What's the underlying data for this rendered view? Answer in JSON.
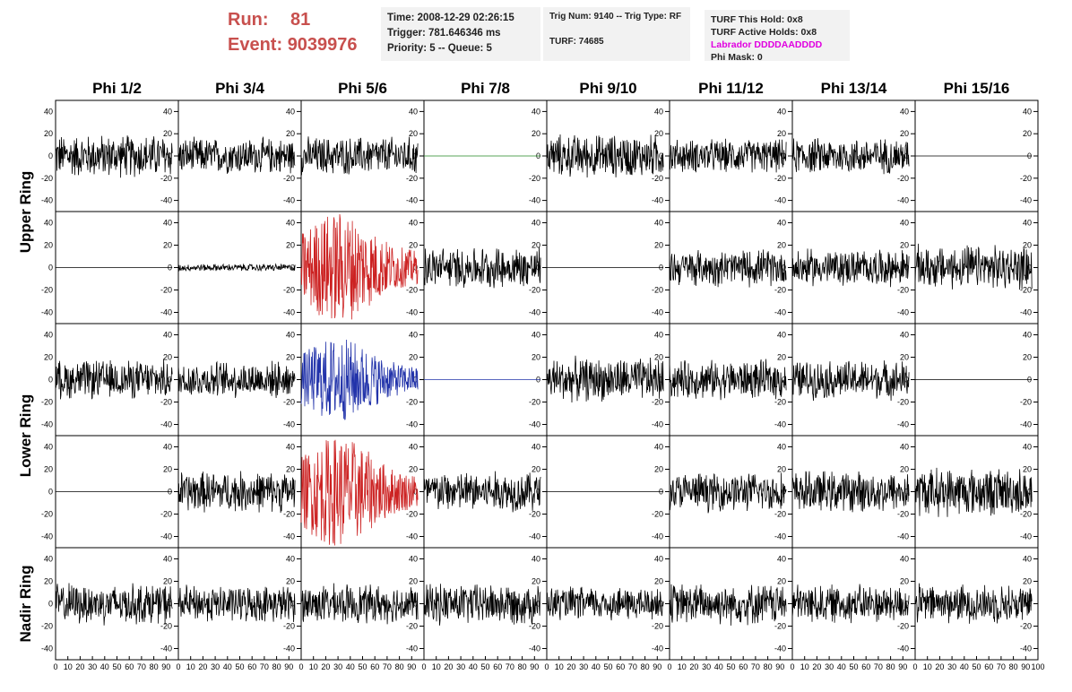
{
  "header": {
    "run_label": "Run:",
    "run_value": "81",
    "event_label": "Event:",
    "event_value": "9039976",
    "time_line": "Time: 2008-12-29 02:26:15",
    "trigger_line": "Trigger: 781.646346 ms",
    "priority_line": "Priority: 5 -- Queue: 5",
    "trig_line": "Trig Num: 9140 -- Trig Type: RF",
    "turf_line": "TURF: 74685",
    "turf_hold_line": "TURF This Hold: 0x8",
    "turf_active_line": "TURF Active Holds: 0x8",
    "labrador_line": "Labrador DDDDAADDDD",
    "phi_mask_line": "Phi Mask: 0"
  },
  "colors": {
    "run_text": "#c8504e",
    "labrador_text": "#e000e0",
    "trace_default": "#000000",
    "trace_red": "#cc2222",
    "trace_blue": "#2233aa",
    "trace_green": "#228822",
    "info_bg": "#f2f2f2"
  },
  "chart_data": {
    "type": "line",
    "columns": [
      "Phi 1/2",
      "Phi 3/4",
      "Phi 5/6",
      "Phi 7/8",
      "Phi 9/10",
      "Phi 11/12",
      "Phi 13/14",
      "Phi 15/16"
    ],
    "ring_labels": [
      "Upper Ring",
      "Lower Ring",
      "Nadir Ring"
    ],
    "rows_per_ring": [
      2,
      2,
      1
    ],
    "xlim": [
      0,
      100
    ],
    "ylim": [
      -50,
      50
    ],
    "x_tick_values": [
      0,
      10,
      20,
      30,
      40,
      50,
      60,
      70,
      80,
      90
    ],
    "y_tick_values": [
      -40,
      -20,
      0,
      20,
      40
    ],
    "grid": false,
    "panels": [
      [
        {
          "mode": "noise",
          "amp": 18,
          "color": "trace_default"
        },
        {
          "mode": "noise",
          "amp": 15,
          "color": "trace_default"
        },
        {
          "mode": "noise",
          "amp": 16,
          "color": "trace_default"
        },
        {
          "mode": "flat",
          "amp": 0,
          "color": "trace_green"
        },
        {
          "mode": "noise",
          "amp": 18,
          "color": "trace_default"
        },
        {
          "mode": "noise",
          "amp": 14,
          "color": "trace_default"
        },
        {
          "mode": "noise",
          "amp": 15,
          "color": "trace_default"
        },
        {
          "mode": "flat",
          "amp": 0,
          "color": "trace_default"
        }
      ],
      [
        {
          "mode": "flat",
          "amp": 0,
          "color": "trace_default"
        },
        {
          "mode": "noise",
          "amp": 3,
          "color": "trace_default"
        },
        {
          "mode": "pulse",
          "amp": 40,
          "color": "trace_red"
        },
        {
          "mode": "noise",
          "amp": 17,
          "color": "trace_default"
        },
        {
          "mode": "flat",
          "amp": 0,
          "color": "trace_default"
        },
        {
          "mode": "noise",
          "amp": 15,
          "color": "trace_default"
        },
        {
          "mode": "noise",
          "amp": 15,
          "color": "trace_default"
        },
        {
          "mode": "noise",
          "amp": 18,
          "color": "trace_default"
        }
      ],
      [
        {
          "mode": "noise",
          "amp": 16,
          "color": "trace_default"
        },
        {
          "mode": "noise",
          "amp": 15,
          "color": "trace_default"
        },
        {
          "mode": "pulse",
          "amp": 30,
          "color": "trace_blue"
        },
        {
          "mode": "flat",
          "amp": 0,
          "color": "trace_blue"
        },
        {
          "mode": "noise",
          "amp": 18,
          "color": "trace_default"
        },
        {
          "mode": "noise",
          "amp": 16,
          "color": "trace_default"
        },
        {
          "mode": "noise",
          "amp": 16,
          "color": "trace_default"
        },
        {
          "mode": "flat",
          "amp": 0,
          "color": "trace_default"
        }
      ],
      [
        {
          "mode": "flat",
          "amp": 0,
          "color": "trace_default"
        },
        {
          "mode": "noise",
          "amp": 17,
          "color": "trace_default"
        },
        {
          "mode": "pulse",
          "amp": 40,
          "color": "trace_red"
        },
        {
          "mode": "noise",
          "amp": 17,
          "color": "trace_default"
        },
        {
          "mode": "flat",
          "amp": 0,
          "color": "trace_default"
        },
        {
          "mode": "noise",
          "amp": 16,
          "color": "trace_default"
        },
        {
          "mode": "noise",
          "amp": 17,
          "color": "trace_default"
        },
        {
          "mode": "noise",
          "amp": 20,
          "color": "trace_default"
        }
      ],
      [
        {
          "mode": "noise",
          "amp": 17,
          "color": "trace_default"
        },
        {
          "mode": "noise",
          "amp": 15,
          "color": "trace_default"
        },
        {
          "mode": "noise",
          "amp": 16,
          "color": "trace_default"
        },
        {
          "mode": "noise",
          "amp": 17,
          "color": "trace_default"
        },
        {
          "mode": "noise",
          "amp": 14,
          "color": "trace_default"
        },
        {
          "mode": "noise",
          "amp": 17,
          "color": "trace_default"
        },
        {
          "mode": "noise",
          "amp": 16,
          "color": "trace_default"
        },
        {
          "mode": "noise",
          "amp": 16,
          "color": "trace_default"
        }
      ]
    ]
  }
}
